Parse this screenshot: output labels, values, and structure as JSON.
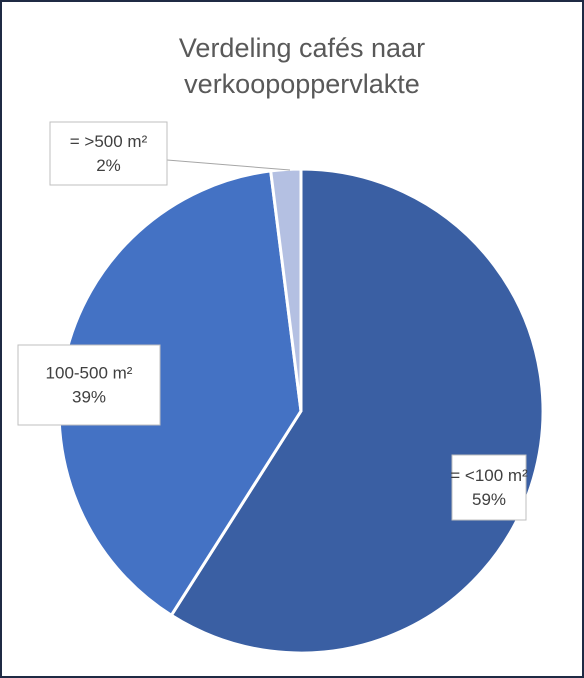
{
  "chart_data": {
    "type": "pie",
    "title": "Verdeling cafés naar verkoopoppervlakte",
    "categories": [
      "= <100 m²",
      "100-500 m²",
      "= >500 m²"
    ],
    "values": [
      59,
      39,
      2
    ],
    "value_labels": [
      "59%",
      "39%",
      "2%"
    ],
    "colors": [
      "#3a5fa3",
      "#4472c4",
      "#b4c0e2"
    ]
  }
}
